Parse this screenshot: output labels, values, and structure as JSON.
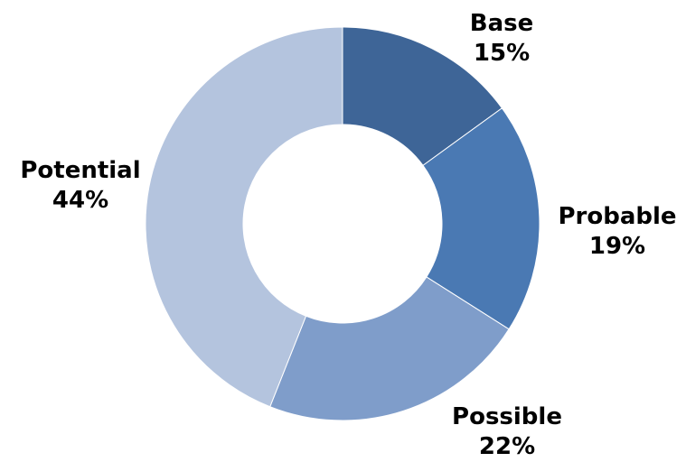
{
  "chart_data": {
    "type": "pie",
    "variant": "donut",
    "title": "",
    "categories": [
      "Base",
      "Probable",
      "Possible",
      "Potential"
    ],
    "values": [
      15,
      19,
      22,
      44
    ],
    "unit": "%",
    "colors": [
      "#3e6597",
      "#4a79b3",
      "#7f9dca",
      "#b4c4de"
    ],
    "start": "12 o'clock",
    "direction": "clockwise",
    "slices": [
      {
        "name": "Base",
        "value_label": "15%"
      },
      {
        "name": "Probable",
        "value_label": "19%"
      },
      {
        "name": "Possible",
        "value_label": "22%"
      },
      {
        "name": "Potential",
        "value_label": "44%"
      }
    ]
  }
}
